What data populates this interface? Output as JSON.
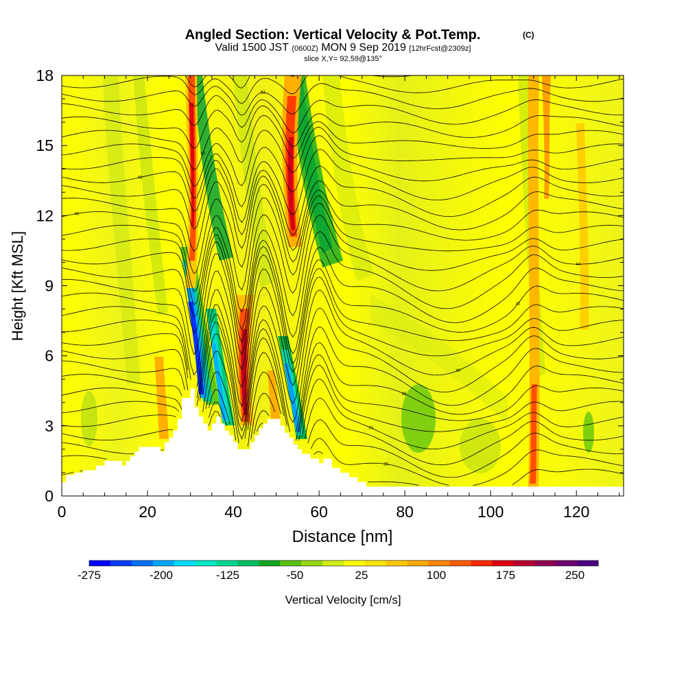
{
  "chart_data": {
    "type": "heatmap",
    "title": "Angled Section: Vertical Velocity & Pot.Temp.",
    "title_unit": "(C)",
    "subtitle_valid": "Valid 1500 JST",
    "subtitle_zulu": "(0600Z)",
    "subtitle_date": "MON 9 Sep 2019",
    "subtitle_fcst": "[12hrFcst@2309z]",
    "subtitle_slice": "slice X,Y= 92,59@135°",
    "xlabel": "Distance [nm]",
    "ylabel": "Height [Kft MSL]",
    "xlim": [
      0,
      131
    ],
    "ylim": [
      0,
      18
    ],
    "x_ticks": [
      "0",
      "20",
      "40",
      "60",
      "80",
      "100",
      "120"
    ],
    "y_ticks": [
      "0",
      "3",
      "6",
      "9",
      "12",
      "15",
      "18"
    ],
    "colorbar": {
      "label": "Vertical Velocity [cm/s]",
      "tick_labels": [
        "-275",
        "-200",
        "-125",
        "-50",
        "25",
        "100",
        "175",
        "250"
      ],
      "colors": [
        "#0000ff",
        "#0a3cff",
        "#0070ff",
        "#00a8ff",
        "#00dcff",
        "#00e8c8",
        "#00d890",
        "#00c060",
        "#10a820",
        "#58c010",
        "#98d810",
        "#d0ec10",
        "#ffff00",
        "#ffe400",
        "#ffc800",
        "#ffa800",
        "#ff8400",
        "#ff5c00",
        "#ff2800",
        "#e00010",
        "#b80030",
        "#900050",
        "#700070",
        "#4c0080"
      ]
    },
    "downdraft_cores_nm": [
      31,
      36,
      43,
      54
    ],
    "updraft_cores_nm": [
      29,
      42,
      53,
      111
    ],
    "terrain_peak_kft": 4.6,
    "theta_label_samples": [
      "30",
      "34",
      "38",
      "40",
      "42",
      "44",
      "46",
      "48",
      "50",
      "52",
      "60",
      "63",
      "67"
    ]
  }
}
